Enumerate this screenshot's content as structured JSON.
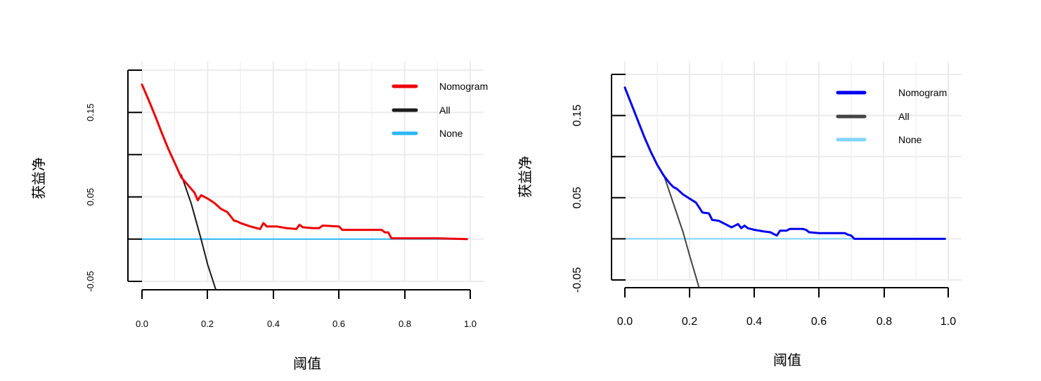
{
  "chart_data": [
    {
      "type": "line",
      "title": "",
      "xlabel": "阈值",
      "ylabel": "获益净",
      "xlim": [
        0,
        1
      ],
      "ylim": [
        -0.05,
        0.2
      ],
      "x_ticks": [
        "0.0",
        "0.2",
        "0.4",
        "0.6",
        "0.8",
        "1.0"
      ],
      "y_ticks": [
        "-0.05",
        "0.05",
        "0.15"
      ],
      "y_tick_values": [
        -0.05,
        0.05,
        0.15
      ],
      "y_minor_ticks": [
        0.0,
        0.1,
        0.2
      ],
      "grid": true,
      "legend_position": "top-right",
      "series": [
        {
          "name": "Nomogram",
          "color": "#ee0000",
          "width": 3,
          "x": [
            0.0,
            0.02,
            0.04,
            0.06,
            0.08,
            0.1,
            0.12,
            0.14,
            0.16,
            0.17,
            0.18,
            0.2,
            0.22,
            0.24,
            0.26,
            0.28,
            0.29,
            0.3,
            0.33,
            0.36,
            0.37,
            0.38,
            0.41,
            0.44,
            0.47,
            0.48,
            0.49,
            0.52,
            0.54,
            0.55,
            0.6,
            0.61,
            0.66,
            0.73,
            0.74,
            0.75,
            0.76,
            0.8,
            0.9,
            0.99
          ],
          "y": [
            0.183,
            0.165,
            0.146,
            0.126,
            0.107,
            0.09,
            0.073,
            0.064,
            0.055,
            0.046,
            0.052,
            0.048,
            0.043,
            0.036,
            0.032,
            0.022,
            0.021,
            0.019,
            0.015,
            0.012,
            0.019,
            0.015,
            0.015,
            0.013,
            0.012,
            0.017,
            0.014,
            0.013,
            0.013,
            0.016,
            0.015,
            0.011,
            0.011,
            0.011,
            0.008,
            0.008,
            0.001,
            0.001,
            0.001,
            0.0
          ]
        },
        {
          "name": "All",
          "color": "#1a1a1a",
          "width": 2,
          "x": [
            0.12,
            0.15,
            0.18,
            0.2,
            0.225
          ],
          "y": [
            0.076,
            0.042,
            0.0,
            -0.03,
            -0.06
          ]
        },
        {
          "name": "None",
          "color": "#29b6f6",
          "width": 2,
          "x": [
            0.0,
            0.99
          ],
          "y": [
            0.0,
            0.0
          ]
        }
      ]
    },
    {
      "type": "line",
      "title": "",
      "xlabel": "阈值",
      "ylabel": "获益净",
      "xlim": [
        0,
        1
      ],
      "ylim": [
        -0.05,
        0.2
      ],
      "x_ticks": [
        "0.0",
        "0.2",
        "0.4",
        "0.6",
        "0.8",
        "1.0"
      ],
      "y_ticks": [
        "-0.05",
        "0.05",
        "0.15"
      ],
      "y_tick_values": [
        -0.05,
        0.05,
        0.15
      ],
      "y_minor_ticks": [
        0.0,
        0.1,
        0.2
      ],
      "grid": true,
      "legend_position": "top-right",
      "series": [
        {
          "name": "Nomogram",
          "color": "#0000ee",
          "width": 3,
          "x": [
            0.0,
            0.02,
            0.04,
            0.06,
            0.08,
            0.1,
            0.12,
            0.14,
            0.15,
            0.16,
            0.18,
            0.2,
            0.22,
            0.24,
            0.26,
            0.27,
            0.29,
            0.31,
            0.33,
            0.35,
            0.36,
            0.37,
            0.38,
            0.4,
            0.43,
            0.45,
            0.46,
            0.47,
            0.48,
            0.5,
            0.51,
            0.55,
            0.56,
            0.57,
            0.6,
            0.62,
            0.68,
            0.69,
            0.7,
            0.71,
            0.75,
            0.85,
            0.99
          ],
          "y": [
            0.184,
            0.164,
            0.144,
            0.124,
            0.106,
            0.09,
            0.077,
            0.067,
            0.063,
            0.061,
            0.054,
            0.049,
            0.044,
            0.032,
            0.031,
            0.023,
            0.022,
            0.018,
            0.014,
            0.018,
            0.013,
            0.016,
            0.013,
            0.011,
            0.009,
            0.008,
            0.006,
            0.004,
            0.01,
            0.01,
            0.012,
            0.012,
            0.011,
            0.008,
            0.007,
            0.007,
            0.007,
            0.005,
            0.004,
            0.0,
            0.0,
            0.0,
            0.0
          ]
        },
        {
          "name": "All",
          "color": "#444444",
          "width": 2,
          "x": [
            0.12,
            0.15,
            0.18,
            0.2,
            0.23
          ],
          "y": [
            0.078,
            0.043,
            0.008,
            -0.02,
            -0.06
          ]
        },
        {
          "name": "None",
          "color": "#81d4fa",
          "width": 2,
          "x": [
            0.0,
            0.99
          ],
          "y": [
            0.0,
            0.0
          ]
        }
      ]
    }
  ]
}
